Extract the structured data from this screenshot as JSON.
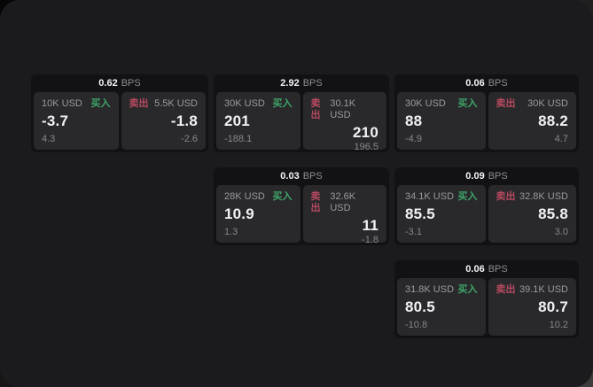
{
  "colors": {
    "buy_accent": "#3ea568",
    "sell_accent": "#b84a5f",
    "window_bg": "#1b1b1d",
    "card_bg": "#121214",
    "panel_bg": "#29292c"
  },
  "cards": [
    {
      "row": 1,
      "col": 1,
      "bps_value": "0.62",
      "bps_unit": "BPS",
      "buy": {
        "amount": "10K USD",
        "tag": "买入",
        "price": "-3.7",
        "delta": "4.3"
      },
      "sell": {
        "amount": "5.5K USD",
        "tag": "卖出",
        "price": "-1.8",
        "delta": "-2.6"
      }
    },
    {
      "row": 1,
      "col": 2,
      "bps_value": "2.92",
      "bps_unit": "BPS",
      "buy": {
        "amount": "30K USD",
        "tag": "买入",
        "price": "201",
        "delta": "-188.1"
      },
      "sell": {
        "amount": "30.1K USD",
        "tag": "卖出",
        "price": "210",
        "delta": "196.5"
      }
    },
    {
      "row": 1,
      "col": 3,
      "bps_value": "0.06",
      "bps_unit": "BPS",
      "buy": {
        "amount": "30K USD",
        "tag": "买入",
        "price": "88",
        "delta": "-4.9"
      },
      "sell": {
        "amount": "30K USD",
        "tag": "卖出",
        "price": "88.2",
        "delta": "4.7"
      }
    },
    {
      "row": 2,
      "col": 2,
      "bps_value": "0.03",
      "bps_unit": "BPS",
      "buy": {
        "amount": "28K USD",
        "tag": "买入",
        "price": "10.9",
        "delta": "1.3"
      },
      "sell": {
        "amount": "32.6K USD",
        "tag": "卖出",
        "price": "11",
        "delta": "-1.8"
      }
    },
    {
      "row": 2,
      "col": 3,
      "bps_value": "0.09",
      "bps_unit": "BPS",
      "buy": {
        "amount": "34.1K USD",
        "tag": "买入",
        "price": "85.5",
        "delta": "-3.1"
      },
      "sell": {
        "amount": "32.8K USD",
        "tag": "卖出",
        "price": "85.8",
        "delta": "3.0"
      }
    },
    {
      "row": 3,
      "col": 3,
      "bps_value": "0.06",
      "bps_unit": "BPS",
      "buy": {
        "amount": "31.8K USD",
        "tag": "买入",
        "price": "80.5",
        "delta": "-10.8"
      },
      "sell": {
        "amount": "39.1K USD",
        "tag": "卖出",
        "price": "80.7",
        "delta": "10.2"
      }
    }
  ]
}
